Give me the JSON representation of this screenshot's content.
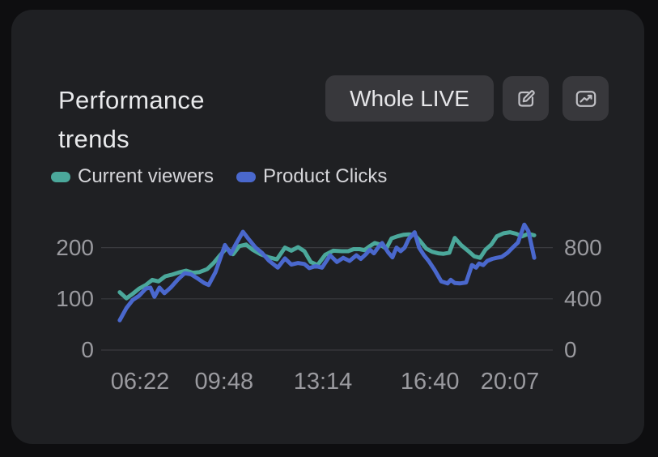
{
  "card": {
    "title": "Performance trends",
    "filter_button_label": "Whole LIVE"
  },
  "legend": [
    {
      "label": "Current viewers",
      "color": "#4ba89b"
    },
    {
      "label": "Product Clicks",
      "color": "#4a68cd"
    }
  ],
  "colors": {
    "page_bg": "#0e0e10",
    "panel_bg": "#1f2023",
    "button_bg": "#38383c",
    "grid_line": "#3a3b3f",
    "axis_text": "#9a9a9f",
    "teal_series": "#4ba89b",
    "blue_series": "#4a68cd"
  },
  "chart_data": {
    "type": "line",
    "title": "Performance trends",
    "grid": true,
    "legend_position": "top-left",
    "x_tick_labels": [
      "06:22",
      "09:48",
      "13:14",
      "16:40",
      "20:07"
    ],
    "x_tick_positions": [
      0.086,
      0.272,
      0.491,
      0.728,
      0.905
    ],
    "axes": {
      "left": {
        "label": "Current viewers",
        "ticks": [
          0,
          100,
          200
        ],
        "range": [
          0,
          269
        ]
      },
      "right": {
        "label": "Product Clicks",
        "ticks": [
          0,
          400,
          800
        ],
        "range": [
          0,
          1076
        ]
      }
    },
    "series": [
      {
        "name": "Current viewers",
        "axis": "left",
        "color": "#4ba89b",
        "points": [
          [
            0.041,
            113
          ],
          [
            0.056,
            101
          ],
          [
            0.07,
            110
          ],
          [
            0.084,
            120
          ],
          [
            0.099,
            127
          ],
          [
            0.113,
            137
          ],
          [
            0.127,
            134
          ],
          [
            0.142,
            144
          ],
          [
            0.156,
            147
          ],
          [
            0.174,
            152
          ],
          [
            0.188,
            155
          ],
          [
            0.203,
            151
          ],
          [
            0.217,
            152
          ],
          [
            0.235,
            158
          ],
          [
            0.249,
            170
          ],
          [
            0.263,
            185
          ],
          [
            0.278,
            199
          ],
          [
            0.292,
            187
          ],
          [
            0.306,
            203
          ],
          [
            0.321,
            206
          ],
          [
            0.335,
            196
          ],
          [
            0.353,
            187
          ],
          [
            0.371,
            181
          ],
          [
            0.389,
            177
          ],
          [
            0.407,
            200
          ],
          [
            0.421,
            194
          ],
          [
            0.436,
            201
          ],
          [
            0.45,
            193
          ],
          [
            0.464,
            172
          ],
          [
            0.479,
            166
          ],
          [
            0.496,
            186
          ],
          [
            0.514,
            194
          ],
          [
            0.532,
            193
          ],
          [
            0.547,
            193
          ],
          [
            0.559,
            197
          ],
          [
            0.572,
            197
          ],
          [
            0.583,
            195
          ],
          [
            0.595,
            203
          ],
          [
            0.606,
            209
          ],
          [
            0.618,
            206
          ],
          [
            0.631,
            198
          ],
          [
            0.643,
            218
          ],
          [
            0.656,
            222
          ],
          [
            0.669,
            225
          ],
          [
            0.681,
            226
          ],
          [
            0.694,
            225
          ],
          [
            0.708,
            211
          ],
          [
            0.72,
            198
          ],
          [
            0.733,
            192
          ],
          [
            0.746,
            189
          ],
          [
            0.758,
            188
          ],
          [
            0.771,
            190
          ],
          [
            0.783,
            219
          ],
          [
            0.797,
            205
          ],
          [
            0.812,
            194
          ],
          [
            0.826,
            183
          ],
          [
            0.839,
            180
          ],
          [
            0.851,
            196
          ],
          [
            0.864,
            206
          ],
          [
            0.876,
            222
          ],
          [
            0.891,
            228
          ],
          [
            0.905,
            230
          ],
          [
            0.919,
            227
          ],
          [
            0.932,
            222
          ],
          [
            0.946,
            227
          ],
          [
            0.959,
            224
          ]
        ]
      },
      {
        "name": "Product Clicks",
        "axis": "right",
        "color": "#4a68cd",
        "points": [
          [
            0.041,
            232
          ],
          [
            0.056,
            328
          ],
          [
            0.07,
            392
          ],
          [
            0.084,
            424
          ],
          [
            0.099,
            480
          ],
          [
            0.109,
            488
          ],
          [
            0.118,
            416
          ],
          [
            0.129,
            488
          ],
          [
            0.14,
            444
          ],
          [
            0.154,
            488
          ],
          [
            0.17,
            552
          ],
          [
            0.185,
            600
          ],
          [
            0.199,
            592
          ],
          [
            0.213,
            560
          ],
          [
            0.228,
            524
          ],
          [
            0.238,
            508
          ],
          [
            0.253,
            608
          ],
          [
            0.263,
            708
          ],
          [
            0.274,
            820
          ],
          [
            0.287,
            752
          ],
          [
            0.299,
            832
          ],
          [
            0.314,
            924
          ],
          [
            0.328,
            860
          ],
          [
            0.342,
            800
          ],
          [
            0.357,
            756
          ],
          [
            0.371,
            700
          ],
          [
            0.391,
            644
          ],
          [
            0.407,
            716
          ],
          [
            0.421,
            668
          ],
          [
            0.436,
            680
          ],
          [
            0.45,
            672
          ],
          [
            0.461,
            640
          ],
          [
            0.475,
            656
          ],
          [
            0.489,
            644
          ],
          [
            0.507,
            740
          ],
          [
            0.522,
            688
          ],
          [
            0.536,
            720
          ],
          [
            0.55,
            696
          ],
          [
            0.565,
            740
          ],
          [
            0.575,
            712
          ],
          [
            0.586,
            748
          ],
          [
            0.595,
            784
          ],
          [
            0.604,
            756
          ],
          [
            0.613,
            800
          ],
          [
            0.622,
            836
          ],
          [
            0.636,
            760
          ],
          [
            0.645,
            724
          ],
          [
            0.654,
            800
          ],
          [
            0.663,
            772
          ],
          [
            0.672,
            800
          ],
          [
            0.681,
            868
          ],
          [
            0.694,
            920
          ],
          [
            0.704,
            800
          ],
          [
            0.715,
            740
          ],
          [
            0.726,
            692
          ],
          [
            0.738,
            628
          ],
          [
            0.753,
            536
          ],
          [
            0.767,
            520
          ],
          [
            0.774,
            548
          ],
          [
            0.783,
            524
          ],
          [
            0.794,
            520
          ],
          [
            0.808,
            528
          ],
          [
            0.821,
            664
          ],
          [
            0.83,
            644
          ],
          [
            0.837,
            676
          ],
          [
            0.846,
            664
          ],
          [
            0.855,
            696
          ],
          [
            0.866,
            712
          ],
          [
            0.876,
            720
          ],
          [
            0.887,
            728
          ],
          [
            0.9,
            760
          ],
          [
            0.91,
            796
          ],
          [
            0.923,
            840
          ],
          [
            0.937,
            980
          ],
          [
            0.946,
            928
          ],
          [
            0.959,
            720
          ]
        ]
      }
    ]
  }
}
